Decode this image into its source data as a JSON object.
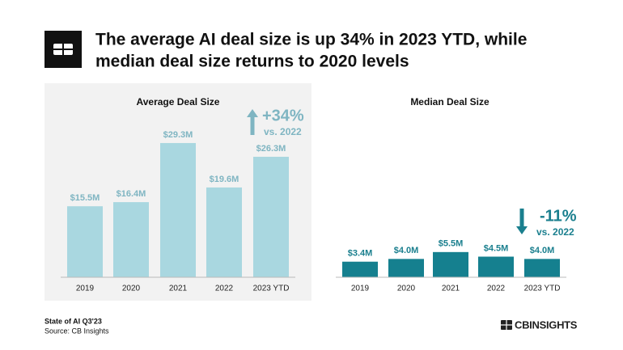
{
  "header": {
    "title_lines": [
      "The average AI deal size is up 34% in 2023 YTD, while",
      "median deal size returns to 2020 levels"
    ]
  },
  "chart_data": [
    {
      "type": "bar",
      "title": "Average Deal Size",
      "categories": [
        "2019",
        "2020",
        "2021",
        "2022",
        "2023 YTD"
      ],
      "values": [
        15.5,
        16.4,
        29.3,
        19.6,
        26.3
      ],
      "value_labels": [
        "$15.5M",
        "$16.4M",
        "$29.3M",
        "$19.6M",
        "$26.3M"
      ],
      "color": "#a9d7e0",
      "label_color": "#7fb5c2",
      "background": "#f2f2f2",
      "ylim": [
        0,
        30
      ],
      "annotation": {
        "direction": "up",
        "change": "+34%",
        "note": "vs. 2022"
      }
    },
    {
      "type": "bar",
      "title": "Median Deal Size",
      "categories": [
        "2019",
        "2020",
        "2021",
        "2022",
        "2023 YTD"
      ],
      "values": [
        3.4,
        4.0,
        5.5,
        4.5,
        4.0
      ],
      "value_labels": [
        "$3.4M",
        "$4.0M",
        "$5.5M",
        "$4.5M",
        "$4.0M"
      ],
      "color": "#15808f",
      "label_color": "#1a7f8e",
      "background": "#ffffff",
      "ylim": [
        0,
        30
      ],
      "annotation": {
        "direction": "down",
        "change": "-11%",
        "note": "vs. 2022"
      }
    }
  ],
  "footer": {
    "report": "State of AI Q3'23",
    "source": "Source: CB Insights",
    "logo_text": "CBINSIGHTS"
  }
}
